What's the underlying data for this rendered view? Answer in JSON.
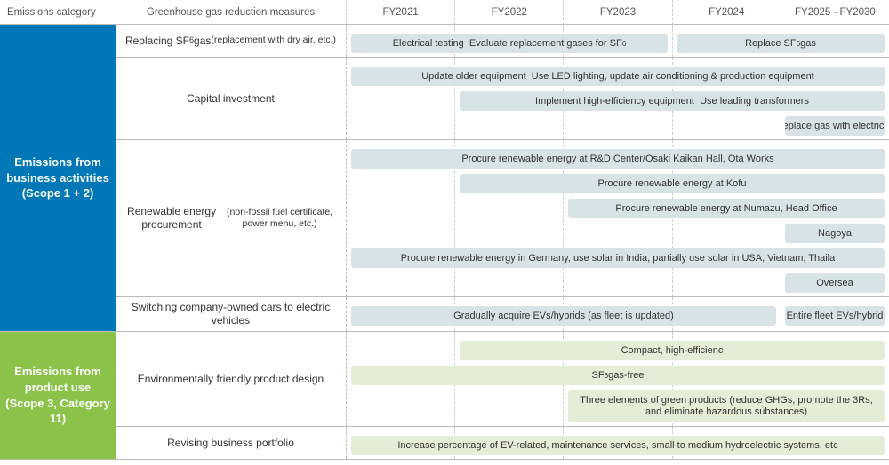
{
  "header": {
    "cat": "Emissions category",
    "meas": "Greenhouse gas reduction measures",
    "years": [
      "FY2021",
      "FY2022",
      "FY2023",
      "FY2024",
      "FY2025 - FY2030"
    ]
  },
  "colors": {
    "scope12_bg": "#0077b6",
    "scope3_bg": "#8bc34a",
    "bar_blue": "#d8e3e8",
    "bar_green": "#e4edd6",
    "grid": "#cccccc",
    "border": "#bbbbbb",
    "text": "#333333"
  },
  "timeline": {
    "unit_pct": 20,
    "columns": 5
  },
  "scope12": {
    "label": "Emissions from business activities (Scope 1 + 2)",
    "rows": [
      {
        "label_html": "Replacing SF<sub>6</sub> gas<br><span style='font-size:10.5px'>(replacement with dry air, etc.)</span>",
        "bars": [
          [
            {
              "start": 0,
              "span": 3,
              "text_html": "Electrical testing&nbsp;&nbsp;Evaluate replacement gases for SF<sub>6</sub>"
            },
            {
              "start": 3,
              "span": 2,
              "text_html": "Replace SF<sub>6</sub> gas"
            }
          ]
        ]
      },
      {
        "label_html": "Capital investment",
        "bars": [
          [
            {
              "start": 0,
              "span": 5,
              "text_html": "Update older equipment&nbsp;&nbsp;Use LED lighting, update air conditioning & production equipment"
            }
          ],
          [
            {
              "start": 1,
              "span": 4,
              "text_html": "Implement high-efficiency equipment&nbsp;&nbsp;Use leading transformers"
            }
          ],
          [
            {
              "start": 4,
              "span": 1,
              "text_html": "Replace gas with electricity"
            }
          ]
        ]
      },
      {
        "label_html": "Renewable energy procurement<br><span style='font-size:10.5px'>(non-fossil fuel certificate, power menu, etc.)</span>",
        "bars": [
          [
            {
              "start": 0,
              "span": 5,
              "text_html": "Procure renewable energy at R&D Center/Osaki Kaikan Hall, Ota Works"
            }
          ],
          [
            {
              "start": 1,
              "span": 4,
              "text_html": "Procure renewable energy at Kofu"
            }
          ],
          [
            {
              "start": 2,
              "span": 3,
              "text_html": "Procure renewable energy at Numazu, Head Office"
            }
          ],
          [
            {
              "start": 4,
              "span": 1,
              "text_html": "Nagoya"
            }
          ],
          [
            {
              "start": 0,
              "span": 5,
              "text_html": "Procure renewable energy in Germany, use solar in India, partially use solar in USA, Vietnam, Thaila"
            }
          ],
          [
            {
              "start": 4,
              "span": 1,
              "text_html": "Oversea"
            }
          ]
        ]
      },
      {
        "label_html": "Switching company-owned cars to electric vehicles",
        "bars": [
          [
            {
              "start": 0,
              "span": 4,
              "text_html": "Gradually acquire EVs/hybrids (as fleet is updated)"
            },
            {
              "start": 4,
              "span": 1,
              "text_html": "Entire fleet EVs/hybrid"
            }
          ]
        ]
      }
    ]
  },
  "scope3": {
    "label": "Emissions from product use (Scope 3, Category 11)",
    "rows": [
      {
        "label_html": "Environmentally friendly product design",
        "bars": [
          [
            {
              "start": 1,
              "span": 4,
              "text_html": "Compact, high-efficienc"
            }
          ],
          [
            {
              "start": 0,
              "span": 5,
              "text_html": "SF<sub>6</sub> gas-free"
            }
          ],
          [
            {
              "start": 2,
              "span": 3,
              "text_html": "Three elements of green products (reduce GHGs, promote the 3Rs,<br>and eliminate hazardous substances)",
              "h": 36
            }
          ]
        ]
      },
      {
        "label_html": "Revising business portfolio",
        "bars": [
          [
            {
              "start": 0,
              "span": 5,
              "text_html": "Increase percentage of EV-related, maintenance services, small to medium hydroelectric systems, etc"
            }
          ]
        ]
      }
    ]
  }
}
